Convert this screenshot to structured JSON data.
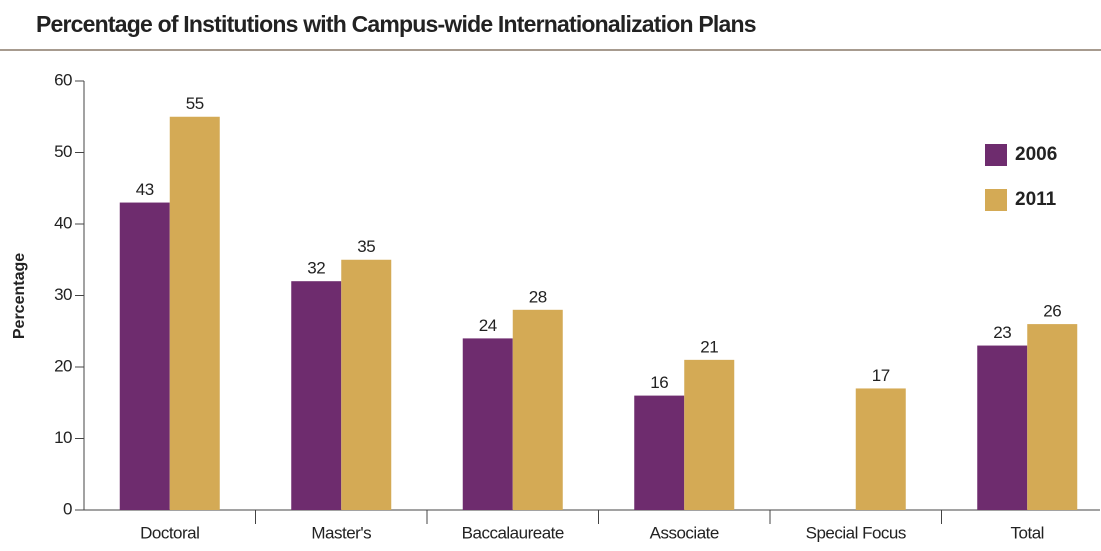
{
  "chart_data": {
    "type": "bar",
    "title": "Percentage of Institutions with Campus-wide Internationalization Plans",
    "ylabel": "Percentage",
    "categories": [
      "Doctoral",
      "Master's",
      "Baccalaureate",
      "Associate",
      "Special Focus",
      "Total"
    ],
    "series": [
      {
        "name": "2006",
        "color": "#6e2c6e",
        "values": [
          43,
          32,
          24,
          16,
          null,
          23
        ]
      },
      {
        "name": "2011",
        "color": "#d4aa55",
        "values": [
          55,
          35,
          28,
          21,
          17,
          26
        ]
      }
    ],
    "ylim": [
      0,
      60
    ],
    "yticks": [
      0,
      10,
      20,
      30,
      40,
      50,
      60
    ],
    "grid": false,
    "legend": "upper right"
  }
}
